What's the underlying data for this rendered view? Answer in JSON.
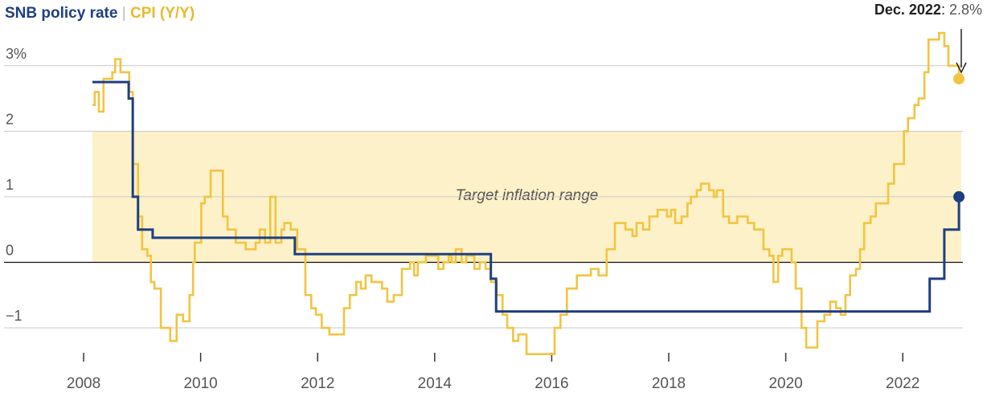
{
  "chart_data": {
    "type": "step-line",
    "series": [
      {
        "name": "SNB policy rate",
        "color": "#1e3f80",
        "x": [
          2008.15,
          2008.77,
          2008.84,
          2008.93,
          2009.18,
          2011.61,
          2014.96,
          2015.05,
          2022.46,
          2022.71,
          2022.96
        ],
        "values": [
          2.75,
          2.5,
          1.0,
          0.5,
          0.375,
          0.125,
          -0.25,
          -0.75,
          -0.25,
          0.5,
          1.0
        ]
      },
      {
        "name": "CPI (Y/Y)",
        "color": "#f2c440",
        "x": [
          2008.15,
          2008.19,
          2008.26,
          2008.34,
          2008.49,
          2008.54,
          2008.63,
          2008.78,
          2008.84,
          2008.93,
          2009.0,
          2009.09,
          2009.15,
          2009.21,
          2009.32,
          2009.48,
          2009.59,
          2009.7,
          2009.81,
          2009.87,
          2009.9,
          2010.01,
          2010.07,
          2010.17,
          2010.38,
          2010.46,
          2010.6,
          2010.77,
          2010.94,
          2011.01,
          2011.1,
          2011.19,
          2011.28,
          2011.38,
          2011.43,
          2011.54,
          2011.65,
          2011.79,
          2011.89,
          2011.97,
          2012.07,
          2012.2,
          2012.45,
          2012.55,
          2012.66,
          2012.74,
          2012.82,
          2012.92,
          2013.1,
          2013.19,
          2013.3,
          2013.44,
          2013.58,
          2013.65,
          2013.71,
          2013.85,
          2014.06,
          2014.15,
          2014.24,
          2014.29,
          2014.36,
          2014.46,
          2014.54,
          2014.68,
          2014.77,
          2014.87,
          2014.96,
          2015.06,
          2015.16,
          2015.24,
          2015.34,
          2015.43,
          2015.57,
          2016.05,
          2016.15,
          2016.26,
          2016.43,
          2016.67,
          2016.8,
          2016.94,
          2017.08,
          2017.26,
          2017.38,
          2017.45,
          2017.56,
          2017.67,
          2017.81,
          2017.97,
          2018.04,
          2018.11,
          2018.22,
          2018.32,
          2018.38,
          2018.48,
          2018.55,
          2018.69,
          2018.77,
          2018.82,
          2018.93,
          2019.03,
          2019.17,
          2019.35,
          2019.46,
          2019.62,
          2019.72,
          2019.79,
          2019.87,
          2019.94,
          2020.1,
          2020.17,
          2020.27,
          2020.35,
          2020.54,
          2020.66,
          2020.76,
          2020.86,
          2020.94,
          2021.02,
          2021.1,
          2021.2,
          2021.27,
          2021.34,
          2021.45,
          2021.54,
          2021.75,
          2021.85,
          2022.02,
          2022.09,
          2022.2,
          2022.27,
          2022.37,
          2022.44,
          2022.62,
          2022.71,
          2022.78,
          2022.96
        ],
        "values": [
          2.4,
          2.6,
          2.3,
          2.8,
          2.9,
          3.1,
          2.9,
          2.6,
          1.5,
          0.7,
          0.2,
          0.1,
          -0.3,
          -0.4,
          -1.0,
          -1.2,
          -0.8,
          -0.9,
          -0.5,
          0.0,
          0.3,
          0.9,
          1.0,
          1.4,
          0.7,
          0.5,
          0.3,
          0.2,
          0.3,
          0.5,
          0.3,
          1.0,
          0.3,
          0.5,
          0.6,
          0.5,
          0.2,
          -0.5,
          -0.7,
          -0.8,
          -1.0,
          -1.1,
          -0.7,
          -0.5,
          -0.3,
          -0.4,
          -0.2,
          -0.3,
          -0.4,
          -0.6,
          -0.5,
          -0.1,
          0.0,
          -0.2,
          0.0,
          0.1,
          -0.1,
          0.0,
          0.1,
          0.0,
          0.2,
          0.0,
          0.1,
          -0.1,
          0.0,
          -0.1,
          -0.3,
          -0.5,
          -0.8,
          -1.0,
          -1.2,
          -1.1,
          -1.4,
          -1.0,
          -0.8,
          -0.4,
          -0.2,
          -0.1,
          -0.2,
          0.2,
          0.6,
          0.5,
          0.4,
          0.6,
          0.5,
          0.7,
          0.8,
          0.7,
          0.8,
          0.6,
          0.7,
          0.9,
          1.0,
          1.1,
          1.2,
          1.1,
          1.0,
          1.1,
          0.7,
          0.6,
          0.7,
          0.6,
          0.5,
          0.2,
          0.1,
          -0.3,
          0.1,
          0.2,
          0.0,
          -0.4,
          -1.0,
          -1.3,
          -0.9,
          -0.8,
          -0.6,
          -0.7,
          -0.8,
          -0.5,
          -0.2,
          -0.1,
          0.2,
          0.6,
          0.7,
          0.9,
          1.2,
          1.5,
          2.0,
          2.2,
          2.4,
          2.5,
          2.9,
          3.4,
          3.5,
          3.3,
          3.0,
          2.8
        ]
      }
    ],
    "target_range": {
      "label": "Target inflation range",
      "x": [
        2008.15,
        2023
      ],
      "y": [
        0,
        2
      ]
    },
    "annotation": {
      "label": "Dec. 2022",
      "value": 2.8,
      "value_label": "2.8%"
    },
    "xlim": [
      2006.7,
      2023
    ],
    "xticks": [
      2008,
      2010,
      2012,
      2014,
      2016,
      2018,
      2020,
      2022
    ],
    "ylim": [
      -1.3,
      3.5
    ],
    "yticks": [
      {
        "value": 3,
        "label": "3%"
      },
      2,
      1,
      0,
      {
        "value": -1,
        "label": "−1"
      }
    ],
    "grid": true
  }
}
